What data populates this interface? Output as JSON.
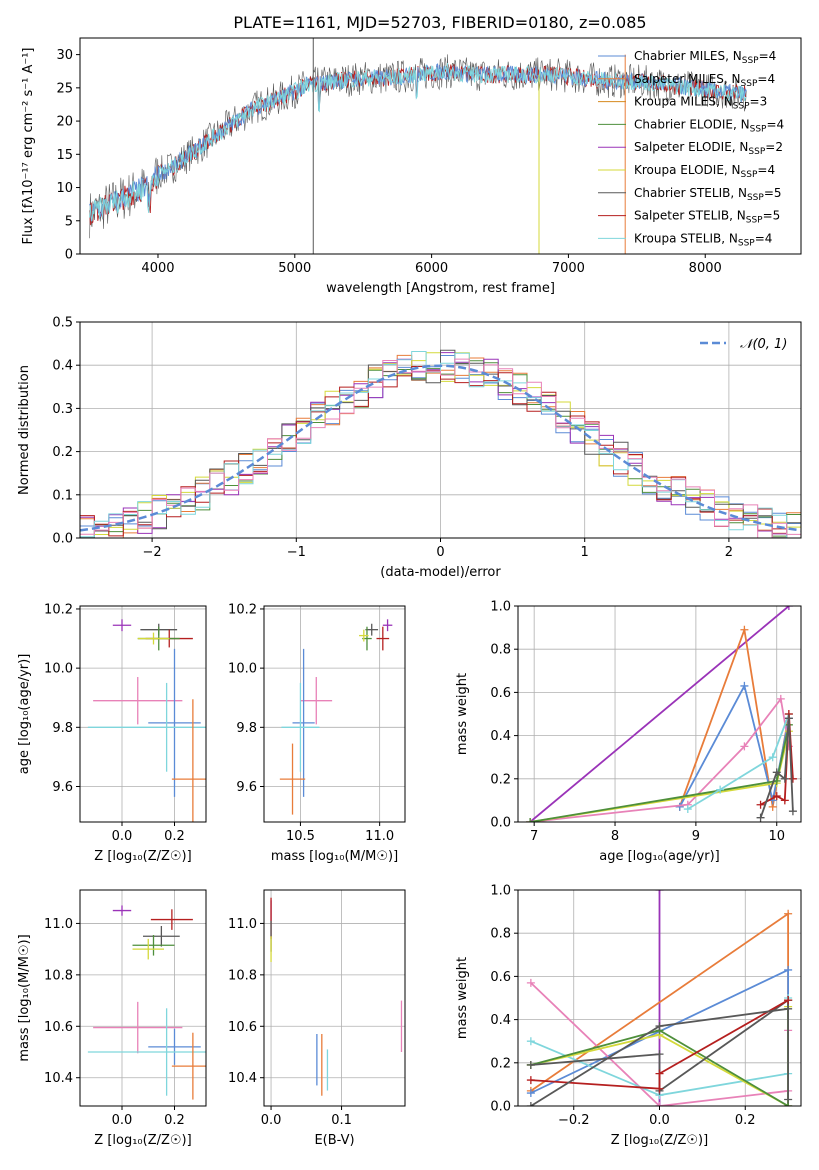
{
  "figure_title": "PLATE=1161, MJD=52703, FIBERID=0180, z=0.085",
  "colors": {
    "Chabrier MILES": "#5b8bd6",
    "Salpeter MILES": "#e87c3a",
    "Kroupa MILES": "#d68a1e",
    "Chabrier ELODIE": "#4e8f3b",
    "Salpeter ELODIE": "#9a33b8",
    "Kroupa ELODIE": "#d4d93a",
    "Chabrier STELIB": "#585858",
    "Salpeter STELIB": "#b51f1f",
    "Kroupa STELIB": "#7fd6dc",
    "pink": "#e882b8"
  },
  "legend_spectrum": [
    {
      "model": "Chabrier MILES",
      "n": "4"
    },
    {
      "model": "Salpeter MILES",
      "n": "4"
    },
    {
      "model": "Kroupa MILES",
      "n": "3"
    },
    {
      "model": "Chabrier ELODIE",
      "n": "4"
    },
    {
      "model": "Salpeter ELODIE",
      "n": "2"
    },
    {
      "model": "Kroupa ELODIE",
      "n": "4"
    },
    {
      "model": "Chabrier STELIB",
      "n": "5"
    },
    {
      "model": "Salpeter STELIB",
      "n": "5"
    },
    {
      "model": "Kroupa STELIB",
      "n": "4"
    }
  ],
  "chart_data": [
    {
      "id": "spectrum",
      "type": "line",
      "xlabel": "wavelength [Angstrom, rest frame]",
      "ylabel": "Flux [fλ10⁻¹⁷ erg cm⁻² s⁻¹ A⁻¹]",
      "xlim": [
        3430,
        8700
      ],
      "ylim": [
        0,
        32.5
      ],
      "xticks": [
        4000,
        5000,
        6000,
        7000,
        8000
      ],
      "yticks": [
        0,
        5,
        10,
        15,
        20,
        25,
        30
      ],
      "continuum": {
        "x": [
          3500,
          3700,
          3900,
          4000,
          4100,
          4300,
          4500,
          4700,
          4900,
          5100,
          5300,
          5500,
          5700,
          5900,
          6100,
          6300,
          6500,
          6700,
          6900,
          7100,
          7300,
          7500,
          7700,
          7900,
          8100,
          8300
        ],
        "y": [
          6,
          8,
          10,
          12,
          13,
          16,
          19,
          22,
          23.5,
          25.5,
          26,
          26.5,
          26.5,
          27,
          27.5,
          27,
          27,
          27,
          27,
          26.5,
          26,
          26,
          25.5,
          25,
          24.5,
          24
        ]
      },
      "spikes": [
        {
          "x": 5135,
          "y0": 0,
          "y1": 32.5,
          "series": "Chabrier STELIB"
        },
        {
          "x": 6785,
          "y0": 0,
          "y1": 27,
          "series": "Kroupa ELODIE"
        },
        {
          "x": 7415,
          "y0": 0,
          "y1": 30,
          "series": "Salpeter MILES"
        }
      ]
    },
    {
      "id": "residuals",
      "type": "histogram",
      "xlabel": "(data-model)/error",
      "ylabel": "Normed distribution",
      "xlim": [
        -2.5,
        2.5
      ],
      "ylim": [
        0,
        0.5
      ],
      "xticks": [
        -2,
        -1,
        0,
        1,
        2
      ],
      "yticks": [
        0.0,
        0.1,
        0.2,
        0.3,
        0.4,
        0.5
      ],
      "legend": "𝒩(0, 1)",
      "bin_width": 0.1
    },
    {
      "id": "z_age",
      "type": "scatter",
      "xlabel": "Z [log₁₀(Z/Z☉)]",
      "ylabel": "age  [log₁₀(age/yr)]",
      "xlim": [
        -0.16,
        0.32
      ],
      "ylim": [
        9.48,
        10.21
      ],
      "xticks": [
        0.0,
        0.2
      ],
      "yticks": [
        9.6,
        9.8,
        10.0,
        10.2
      ],
      "points": [
        {
          "x": 0.0,
          "y": 10.145,
          "xerr": 0.035,
          "yerr": 0.02,
          "c": "Salpeter ELODIE"
        },
        {
          "x": 0.14,
          "y": 10.13,
          "xerr": 0.07,
          "yerr": 0.02,
          "c": "Chabrier STELIB"
        },
        {
          "x": 0.18,
          "y": 10.1,
          "xerr": 0.09,
          "yerr": 0.03,
          "c": "Salpeter STELIB"
        },
        {
          "x": 0.14,
          "y": 10.1,
          "xerr": 0.08,
          "yerr": 0.04,
          "c": "Chabrier ELODIE"
        },
        {
          "x": 0.12,
          "y": 10.1,
          "xerr": 0.06,
          "yerr": 0.02,
          "c": "Kroupa ELODIE"
        },
        {
          "x": 0.06,
          "y": 9.89,
          "xerr": 0.17,
          "yerr": 0.08,
          "c": "pink"
        },
        {
          "x": 0.2,
          "y": 9.815,
          "xerr": 0.1,
          "yerr": 0.25,
          "c": "Chabrier MILES"
        },
        {
          "x": 0.17,
          "y": 9.8,
          "xerr": 0.3,
          "yerr": 0.15,
          "c": "Kroupa STELIB"
        },
        {
          "x": 0.27,
          "y": 9.625,
          "xerr": 0.08,
          "yerr": 0.27,
          "c": "Salpeter MILES"
        }
      ]
    },
    {
      "id": "mass_age",
      "type": "scatter",
      "xlabel": "mass [log₁₀(M/M☉)]",
      "ylabel": "",
      "xlim": [
        10.27,
        11.16
      ],
      "ylim": [
        9.48,
        10.21
      ],
      "xticks": [
        10.5,
        11.0
      ],
      "yticks": [
        9.6,
        9.8,
        10.0,
        10.2
      ],
      "points": [
        {
          "x": 11.05,
          "y": 10.145,
          "xerr": 0.03,
          "yerr": 0.02,
          "c": "Salpeter ELODIE"
        },
        {
          "x": 10.95,
          "y": 10.13,
          "xerr": 0.04,
          "yerr": 0.02,
          "c": "Chabrier STELIB"
        },
        {
          "x": 11.02,
          "y": 10.1,
          "xerr": 0.04,
          "yerr": 0.04,
          "c": "Salpeter STELIB"
        },
        {
          "x": 10.92,
          "y": 10.1,
          "xerr": 0.03,
          "yerr": 0.04,
          "c": "Chabrier ELODIE"
        },
        {
          "x": 10.9,
          "y": 10.11,
          "xerr": 0.03,
          "yerr": 0.02,
          "c": "Kroupa ELODIE"
        },
        {
          "x": 10.6,
          "y": 9.89,
          "xerr": 0.1,
          "yerr": 0.08,
          "c": "pink"
        },
        {
          "x": 10.52,
          "y": 9.815,
          "xerr": 0.07,
          "yerr": 0.25,
          "c": "Chabrier MILES"
        },
        {
          "x": 10.5,
          "y": 9.8,
          "xerr": 0.12,
          "yerr": 0.15,
          "c": "Kroupa STELIB"
        },
        {
          "x": 10.45,
          "y": 9.625,
          "xerr": 0.08,
          "yerr": 0.12,
          "c": "Salpeter MILES"
        }
      ]
    },
    {
      "id": "age_weight",
      "type": "line",
      "xlabel": "age  [log₁₀(age/yr)]",
      "ylabel": "mass weight",
      "xlim": [
        6.8,
        10.3
      ],
      "ylim": [
        0,
        1
      ],
      "xticks": [
        7,
        8,
        9,
        10
      ],
      "yticks": [
        0.0,
        0.2,
        0.4,
        0.6,
        0.8,
        1.0
      ],
      "series": [
        {
          "c": "Salpeter ELODIE",
          "x": [
            6.95,
            10.15
          ],
          "y": [
            0.0,
            1.0
          ]
        },
        {
          "c": "Salpeter MILES",
          "x": [
            8.8,
            9.6,
            9.95,
            10.15
          ],
          "y": [
            0.07,
            0.89,
            0.07,
            0.5
          ]
        },
        {
          "c": "Chabrier MILES",
          "x": [
            8.8,
            9.6,
            9.95,
            10.15
          ],
          "y": [
            0.07,
            0.63,
            0.1,
            0.48
          ]
        },
        {
          "c": "pink",
          "x": [
            6.95,
            8.9,
            9.6,
            10.05,
            10.15
          ],
          "y": [
            0.0,
            0.08,
            0.35,
            0.57,
            0.35
          ]
        },
        {
          "c": "Kroupa ELODIE",
          "x": [
            6.95,
            10.0,
            10.15
          ],
          "y": [
            0.0,
            0.18,
            0.42
          ]
        },
        {
          "c": "Chabrier ELODIE",
          "x": [
            6.95,
            10.0,
            10.15
          ],
          "y": [
            0.0,
            0.19,
            0.45
          ]
        },
        {
          "c": "Kroupa STELIB",
          "x": [
            8.9,
            9.3,
            9.95,
            10.15
          ],
          "y": [
            0.06,
            0.15,
            0.3,
            0.5
          ]
        },
        {
          "c": "Salpeter STELIB",
          "x": [
            9.8,
            10.0,
            10.1,
            10.15,
            10.2
          ],
          "y": [
            0.08,
            0.12,
            0.1,
            0.5,
            0.2
          ]
        },
        {
          "c": "Chabrier STELIB",
          "x": [
            9.8,
            10.0,
            10.1,
            10.15,
            10.2
          ],
          "y": [
            0.02,
            0.23,
            0.2,
            0.48,
            0.05
          ]
        }
      ]
    },
    {
      "id": "z_mass",
      "type": "scatter",
      "xlabel": "Z [log₁₀(Z/Z☉)]",
      "ylabel": "mass [log₁₀(M/M☉)]",
      "xlim": [
        -0.16,
        0.32
      ],
      "ylim": [
        10.29,
        11.13
      ],
      "xticks": [
        0.0,
        0.2
      ],
      "yticks": [
        10.4,
        10.6,
        10.8,
        11.0
      ],
      "points": [
        {
          "x": 0.0,
          "y": 11.05,
          "xerr": 0.035,
          "yerr": 0.02,
          "c": "Salpeter ELODIE"
        },
        {
          "x": 0.19,
          "y": 11.015,
          "xerr": 0.08,
          "yerr": 0.04,
          "c": "Salpeter STELIB"
        },
        {
          "x": 0.15,
          "y": 10.95,
          "xerr": 0.07,
          "yerr": 0.04,
          "c": "Chabrier STELIB"
        },
        {
          "x": 0.12,
          "y": 10.915,
          "xerr": 0.08,
          "yerr": 0.04,
          "c": "Chabrier ELODIE"
        },
        {
          "x": 0.1,
          "y": 10.9,
          "xerr": 0.06,
          "yerr": 0.04,
          "c": "Kroupa ELODIE"
        },
        {
          "x": 0.06,
          "y": 10.595,
          "xerr": 0.17,
          "yerr": 0.1,
          "c": "pink"
        },
        {
          "x": 0.2,
          "y": 10.52,
          "xerr": 0.1,
          "yerr": 0.07,
          "c": "Chabrier MILES"
        },
        {
          "x": 0.17,
          "y": 10.5,
          "xerr": 0.3,
          "yerr": 0.17,
          "c": "Kroupa STELIB"
        },
        {
          "x": 0.27,
          "y": 10.445,
          "xerr": 0.08,
          "yerr": 0.13,
          "c": "Salpeter MILES"
        }
      ]
    },
    {
      "id": "ebv_mass",
      "type": "scatter",
      "xlabel": "E(B-V)",
      "ylabel": "",
      "xlim": [
        -0.01,
        0.19
      ],
      "ylim": [
        10.29,
        11.13
      ],
      "xticks": [
        0.0,
        0.1
      ],
      "yticks": [
        10.4,
        10.6,
        10.8,
        11.0
      ],
      "points": [
        {
          "x": 0.0,
          "y": 11.05,
          "xerr": 0,
          "yerr": 0.04,
          "c": "Salpeter ELODIE"
        },
        {
          "x": 0.0,
          "y": 11.02,
          "xerr": 0,
          "yerr": 0.08,
          "c": "Salpeter STELIB"
        },
        {
          "x": 0.0,
          "y": 10.95,
          "xerr": 0,
          "yerr": 0.06,
          "c": "Chabrier STELIB"
        },
        {
          "x": 0.0,
          "y": 10.9,
          "xerr": 0,
          "yerr": 0.05,
          "c": "Kroupa ELODIE"
        },
        {
          "x": 0.185,
          "y": 10.6,
          "xerr": 0,
          "yerr": 0.1,
          "c": "pink"
        },
        {
          "x": 0.065,
          "y": 10.47,
          "xerr": 0,
          "yerr": 0.1,
          "c": "Chabrier MILES"
        },
        {
          "x": 0.072,
          "y": 10.45,
          "xerr": 0,
          "yerr": 0.12,
          "c": "Salpeter MILES"
        },
        {
          "x": 0.08,
          "y": 10.43,
          "xerr": 0,
          "yerr": 0.08,
          "c": "Kroupa STELIB"
        }
      ]
    },
    {
      "id": "z_weight",
      "type": "line",
      "xlabel": "Z [log₁₀(Z/Z☉)]",
      "ylabel": "mass weight",
      "xlim": [
        -0.33,
        0.33
      ],
      "ylim": [
        0,
        1
      ],
      "xticks": [
        -0.2,
        0.0,
        0.2
      ],
      "yticks": [
        0.0,
        0.2,
        0.4,
        0.6,
        0.8,
        1.0
      ],
      "series": [
        {
          "c": "Salpeter ELODIE",
          "x": [
            0.0,
            0.0
          ],
          "y": [
            0.0,
            1.0
          ]
        },
        {
          "c": "Salpeter MILES",
          "x": [
            -0.3,
            0.3,
            0.3
          ],
          "y": [
            0.07,
            0.89,
            0.0
          ]
        },
        {
          "c": "Chabrier MILES",
          "x": [
            -0.3,
            0.3,
            0.3
          ],
          "y": [
            0.06,
            0.63,
            0.0
          ]
        },
        {
          "c": "pink",
          "x": [
            -0.3,
            0.0,
            0.3,
            0.3
          ],
          "y": [
            0.57,
            0.0,
            0.07,
            0.35
          ]
        },
        {
          "c": "Kroupa STELIB",
          "x": [
            -0.3,
            0.0,
            0.3,
            0.3
          ],
          "y": [
            0.3,
            0.05,
            0.15,
            0.5
          ]
        },
        {
          "c": "Kroupa ELODIE",
          "x": [
            -0.3,
            0.0,
            0.3,
            0.3
          ],
          "y": [
            0.19,
            0.33,
            0.0,
            0.46
          ]
        },
        {
          "c": "Chabrier ELODIE",
          "x": [
            -0.3,
            0.0,
            0.3,
            0.3
          ],
          "y": [
            0.19,
            0.35,
            0.0,
            0.49
          ]
        },
        {
          "c": "Chabrier STELIB",
          "x": [
            -0.3,
            0.0,
            0.0,
            0.3,
            0.3
          ],
          "y": [
            0.19,
            0.24,
            0.07,
            0.49,
            0.03
          ]
        },
        {
          "c": "Salpeter STELIB",
          "x": [
            -0.3,
            0.0,
            0.0,
            0.3
          ],
          "y": [
            0.12,
            0.08,
            0.15,
            0.49
          ]
        },
        {
          "c": "Chabrier STELIB",
          "x": [
            -0.3,
            0.0,
            0.3
          ],
          "y": [
            0.0,
            0.37,
            0.45
          ]
        }
      ]
    }
  ]
}
